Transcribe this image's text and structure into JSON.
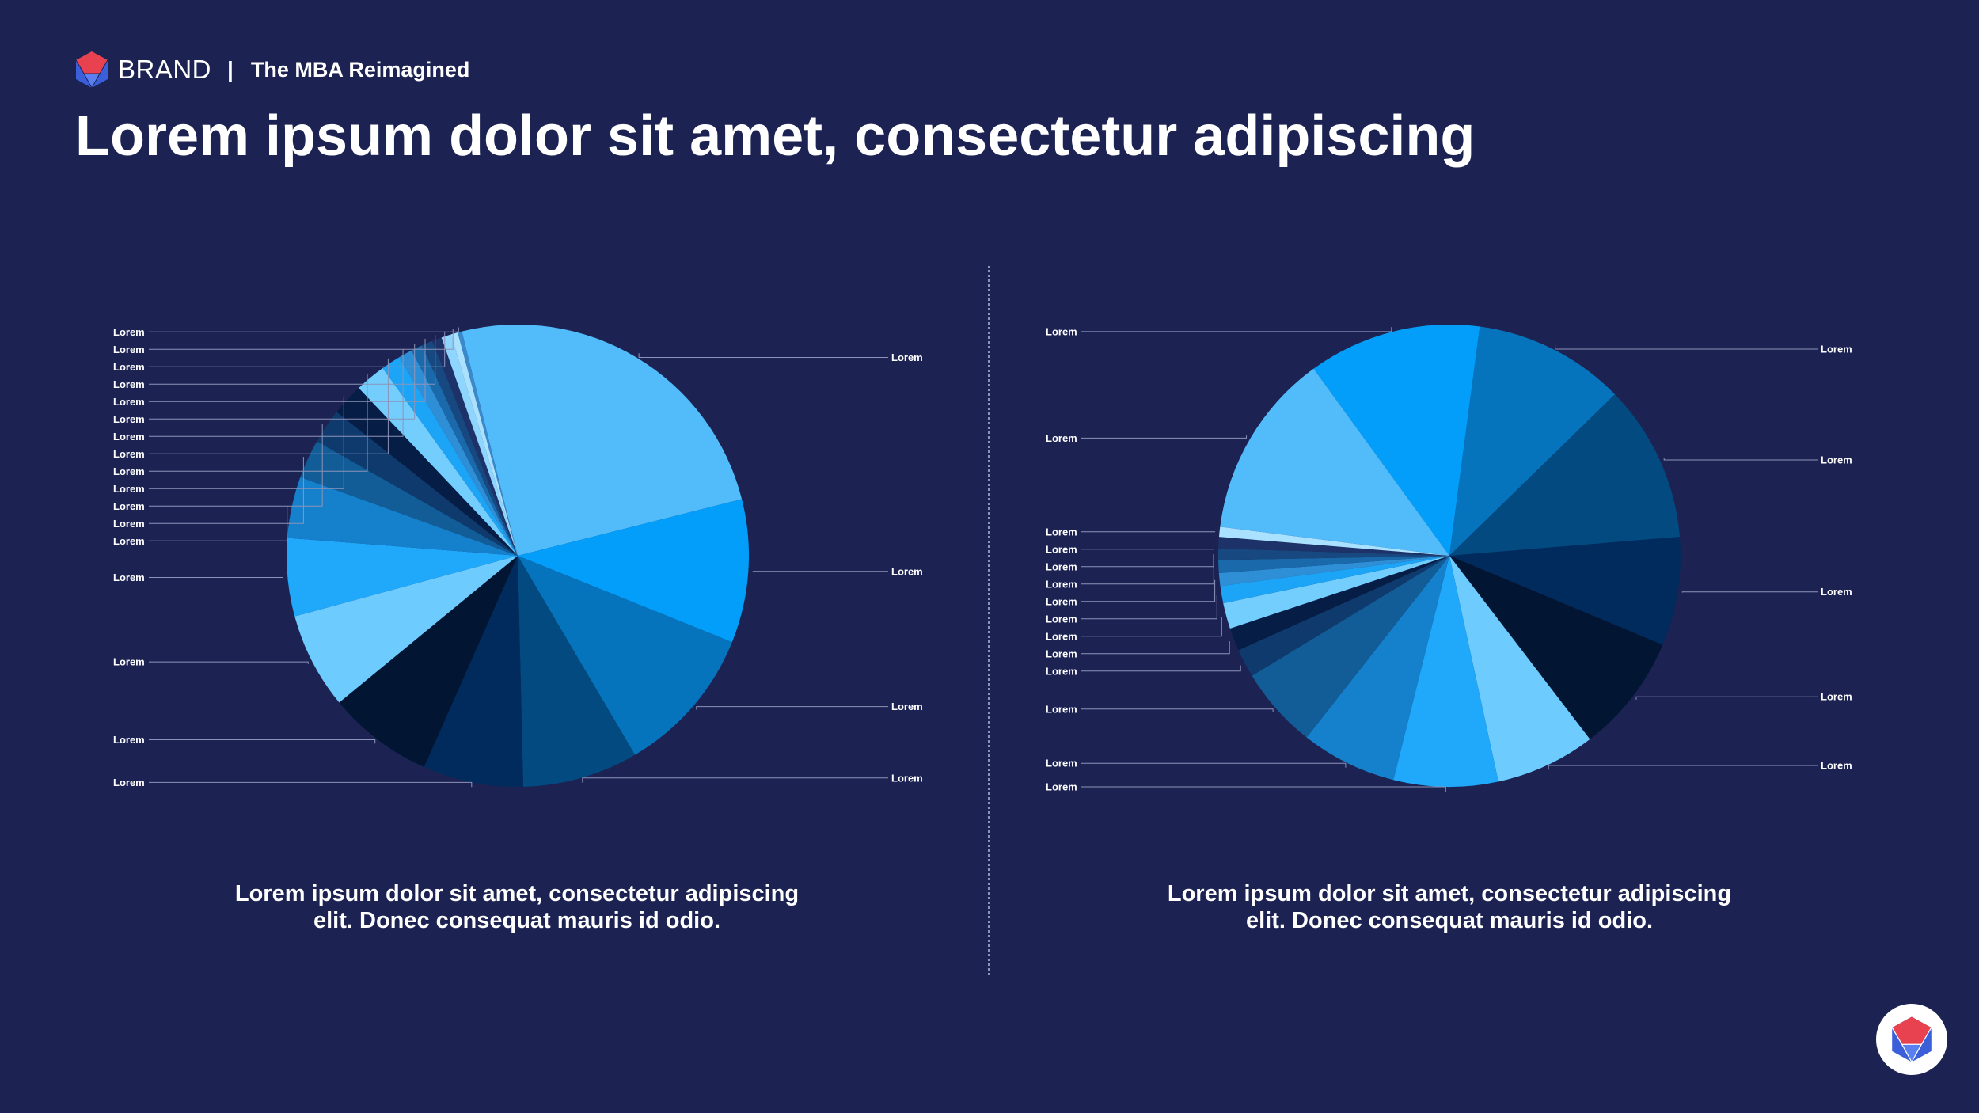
{
  "header": {
    "brand": "BRAND",
    "separator": "|",
    "tagline": "The MBA Reimagined"
  },
  "title": "Lorem ipsum dolor sit amet, consectetur adipiscing",
  "colors": {
    "background": "#1c2352",
    "accent_red": "#e8414f",
    "accent_blue": "#3a5fd9"
  },
  "captions": [
    {
      "line1": "Lorem ipsum dolor sit amet, consectetur adipiscing",
      "line2": "elit. Donec consequat mauris id odio."
    },
    {
      "line1": "Lorem ipsum dolor sit amet, consectetur adipiscing",
      "line2": "elit. Donec consequat mauris id odio."
    }
  ],
  "icons": {
    "logo": "d20-dice-icon",
    "corner": "d20-dice-icon"
  },
  "chart_data": [
    {
      "type": "pie",
      "start_angle_deg": 346,
      "slices": [
        {
          "label": "Lorem",
          "value": 25.6,
          "color": "#52bcfb"
        },
        {
          "label": "Lorem",
          "value": 10.3,
          "color": "#039ef9"
        },
        {
          "label": "Lorem",
          "value": 10.7,
          "color": "#0674bd"
        },
        {
          "label": "Lorem",
          "value": 8.3,
          "color": "#024a80"
        },
        {
          "label": "Lorem",
          "value": 7.2,
          "color": "#012b5c"
        },
        {
          "label": "Lorem",
          "value": 7.6,
          "color": "#021634"
        },
        {
          "label": "Lorem",
          "value": 6.9,
          "color": "#6ecbfe"
        },
        {
          "label": "Lorem",
          "value": 5.6,
          "color": "#20a8fb"
        },
        {
          "label": "Lorem",
          "value": 4.4,
          "color": "#1580cb"
        },
        {
          "label": "Lorem",
          "value": 2.8,
          "color": "#125d98"
        },
        {
          "label": "Lorem",
          "value": 2.5,
          "color": "#0e3a6d"
        },
        {
          "label": "Lorem",
          "value": 2.3,
          "color": "#061d45"
        },
        {
          "label": "Lorem",
          "value": 2.2,
          "color": "#73cefe"
        },
        {
          "label": "Lorem",
          "value": 1.4,
          "color": "#1ca4f6"
        },
        {
          "label": "Lorem",
          "value": 1.0,
          "color": "#2f8fd6"
        },
        {
          "label": "Lorem",
          "value": 0.8,
          "color": "#1a6aab"
        },
        {
          "label": "Lorem",
          "value": 0.8,
          "color": "#17487f"
        },
        {
          "label": "Lorem",
          "value": 0.7,
          "color": "#1d3268"
        },
        {
          "label": "Lorem",
          "value": 0.7,
          "color": "#8fd6ff"
        },
        {
          "label": "Lorem",
          "value": 0.5,
          "color": "#a9e1ff"
        },
        {
          "label": "Lorem",
          "value": 0.3,
          "color": "#3a8acb"
        }
      ]
    },
    {
      "type": "pie",
      "start_angle_deg": 324,
      "slices": [
        {
          "label": "Lorem",
          "value": 12.1,
          "color": "#039ef9"
        },
        {
          "label": "Lorem",
          "value": 10.6,
          "color": "#0674bd"
        },
        {
          "label": "Lorem",
          "value": 11.0,
          "color": "#024a80"
        },
        {
          "label": "Lorem",
          "value": 7.6,
          "color": "#012b5c"
        },
        {
          "label": "Lorem",
          "value": 8.3,
          "color": "#021634"
        },
        {
          "label": "Lorem",
          "value": 7.0,
          "color": "#6ecbfe"
        },
        {
          "label": "Lorem",
          "value": 7.3,
          "color": "#20a8fb"
        },
        {
          "label": "Lorem",
          "value": 6.7,
          "color": "#1580cb"
        },
        {
          "label": "Lorem",
          "value": 5.7,
          "color": "#125d98"
        },
        {
          "label": "Lorem",
          "value": 2.0,
          "color": "#0e3a6d"
        },
        {
          "label": "Lorem",
          "value": 1.6,
          "color": "#061d45"
        },
        {
          "label": "Lorem",
          "value": 1.8,
          "color": "#73cefe"
        },
        {
          "label": "Lorem",
          "value": 1.2,
          "color": "#1ca4f6"
        },
        {
          "label": "Lorem",
          "value": 0.9,
          "color": "#2f8fd6"
        },
        {
          "label": "Lorem",
          "value": 0.9,
          "color": "#1a6aab"
        },
        {
          "label": "Lorem",
          "value": 0.8,
          "color": "#17487f"
        },
        {
          "label": "Lorem",
          "value": 0.8,
          "color": "#1d3268"
        },
        {
          "label": "Lorem",
          "value": 0.7,
          "color": "#a9e1ff"
        },
        {
          "label": "Lorem",
          "value": 13.0,
          "color": "#52bcfb"
        }
      ]
    }
  ]
}
